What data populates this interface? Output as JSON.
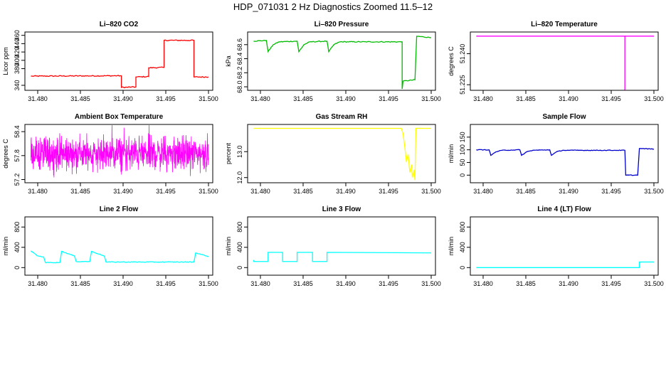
{
  "title": "HDP_071031  2 Hz Diagnostics Zoomed 11.5–12",
  "chart_data": [
    {
      "type": "line",
      "title": "Li–820 CO2",
      "xlabel": "",
      "ylabel": "Licor ppm",
      "xlim": [
        31.4785,
        31.5005
      ],
      "ylim": [
        328,
        468
      ],
      "xticks": [
        31.48,
        31.485,
        31.49,
        31.495,
        31.5
      ],
      "xtick_labels": [
        "31.480",
        "31.485",
        "31.490",
        "31.495",
        "31.500"
      ],
      "yticks": [
        340,
        380,
        400,
        420,
        440,
        460
      ],
      "ytick_labels": [
        "340",
        "380",
        "400",
        "420",
        "440",
        "460"
      ],
      "grid": false,
      "series": [
        {
          "color": "#ff0000",
          "noise": 1.2,
          "x": [
            31.4792,
            31.4898,
            31.4898,
            31.4915,
            31.4915,
            31.493,
            31.493,
            31.4948,
            31.4948,
            31.4983,
            31.4983,
            31.5
          ],
          "y": [
            362,
            363,
            335,
            336,
            360,
            361,
            382,
            383,
            448,
            448,
            360,
            360
          ]
        }
      ]
    },
    {
      "type": "line",
      "title": "Li–820 Pressure",
      "xlabel": "",
      "ylabel": "kPa",
      "xlim": [
        31.4785,
        31.5005
      ],
      "ylim": [
        67.95,
        68.78
      ],
      "xticks": [
        31.48,
        31.485,
        31.49,
        31.495,
        31.5
      ],
      "xtick_labels": [
        "31.480",
        "31.485",
        "31.490",
        "31.495",
        "31.500"
      ],
      "yticks": [
        68.0,
        68.2,
        68.4,
        68.6
      ],
      "ytick_labels": [
        "68.0",
        "68.2",
        "68.4",
        "68.6"
      ],
      "grid": false,
      "series": [
        {
          "color": "#00bb00",
          "noise": 0.006,
          "x": [
            31.4792,
            31.4807,
            31.4809,
            31.4815,
            31.4822,
            31.4843,
            31.4845,
            31.4851,
            31.4858,
            31.4878,
            31.488,
            31.4886,
            31.4893,
            31.4966,
            31.4966,
            31.4967,
            31.4981,
            31.4983,
            31.5
          ],
          "y": [
            68.65,
            68.66,
            68.5,
            68.6,
            68.64,
            68.65,
            68.5,
            68.6,
            68.64,
            68.65,
            68.5,
            68.6,
            68.64,
            68.64,
            67.97,
            68.08,
            68.1,
            68.72,
            68.7
          ]
        }
      ]
    },
    {
      "type": "line",
      "title": "Li–820 Temperature",
      "xlabel": "",
      "ylabel": "degrees C",
      "xlim": [
        31.4785,
        31.5005
      ],
      "ylim": [
        51.2223,
        51.2505
      ],
      "xticks": [
        31.48,
        31.485,
        31.49,
        31.495,
        31.5
      ],
      "xtick_labels": [
        "31.480",
        "31.485",
        "31.490",
        "31.495",
        "31.500"
      ],
      "yticks": [
        51.225,
        51.24
      ],
      "ytick_labels": [
        "51.225",
        "51.240"
      ],
      "grid": false,
      "series": [
        {
          "color": "#ff00ff",
          "noise": 0,
          "x": [
            31.4792,
            31.4966,
            31.4966,
            31.4966,
            31.5
          ],
          "y": [
            51.2485,
            51.2485,
            51.2225,
            51.2485,
            51.2485
          ]
        }
      ]
    },
    {
      "type": "line",
      "title": "Ambient Box Temperature",
      "xlabel": "",
      "ylabel": "degrees C",
      "xlim": [
        31.4785,
        31.5005
      ],
      "ylim": [
        57.12,
        58.58
      ],
      "xticks": [
        31.48,
        31.485,
        31.49,
        31.495,
        31.5
      ],
      "xtick_labels": [
        "31.480",
        "31.485",
        "31.490",
        "31.495",
        "31.500"
      ],
      "yticks": [
        57.2,
        57.8,
        58.4
      ],
      "ytick_labels": [
        "57.2",
        "57.8",
        "58.4"
      ],
      "grid": false,
      "series": [
        {
          "color": "#ff00ff",
          "noise": 0,
          "x": [
            31.4792,
            31.5
          ],
          "y": [
            57.8,
            57.8
          ],
          "band": [
            57.4,
            58.3
          ]
        }
      ]
    },
    {
      "type": "line",
      "title": "Gas Stream RH",
      "xlabel": "",
      "ylabel": "percent",
      "xlim": [
        31.4785,
        31.5005
      ],
      "ylim": [
        11.8,
        14.05
      ],
      "xticks": [
        31.48,
        31.485,
        31.49,
        31.495,
        31.5
      ],
      "xtick_labels": [
        "31.480",
        "31.485",
        "31.490",
        "31.495",
        "31.500"
      ],
      "yticks": [
        12.0,
        13.0
      ],
      "ytick_labels": [
        "12.0",
        "13.0"
      ],
      "grid": false,
      "series": [
        {
          "color": "#ffff00",
          "noise": 0,
          "x": [
            31.4792,
            31.4965,
            31.4967,
            31.4969,
            31.4971,
            31.4973,
            31.4975,
            31.4977,
            31.4978,
            31.498,
            31.4981,
            31.4982,
            31.5
          ],
          "y": [
            13.9,
            13.9,
            13.7,
            13.2,
            12.6,
            12.9,
            12.2,
            12.5,
            12.0,
            12.3,
            11.9,
            13.9,
            13.9
          ]
        }
      ]
    },
    {
      "type": "line",
      "title": "Sample Flow",
      "xlabel": "",
      "ylabel": "ml/min",
      "xlim": [
        31.4785,
        31.5005
      ],
      "ylim": [
        -30,
        200
      ],
      "xticks": [
        31.48,
        31.485,
        31.49,
        31.495,
        31.5
      ],
      "xtick_labels": [
        "31.480",
        "31.485",
        "31.490",
        "31.495",
        "31.500"
      ],
      "yticks": [
        0,
        50,
        100,
        150
      ],
      "ytick_labels": [
        "0",
        "50",
        "100",
        "150"
      ],
      "grid": false,
      "series": [
        {
          "color": "#0000cc",
          "noise": 1.2,
          "x": [
            31.4792,
            31.4807,
            31.4809,
            31.4815,
            31.4822,
            31.4843,
            31.4845,
            31.4851,
            31.4858,
            31.4878,
            31.488,
            31.4886,
            31.4893,
            31.4966,
            31.4967,
            31.4981,
            31.4983,
            31.5
          ],
          "y": [
            100,
            100,
            78,
            92,
            98,
            100,
            78,
            92,
            98,
            100,
            78,
            92,
            98,
            98,
            0,
            0,
            105,
            103
          ]
        }
      ]
    },
    {
      "type": "line",
      "title": "Line 2 Flow",
      "xlabel": "",
      "ylabel": "ml/min",
      "xlim": [
        31.4785,
        31.5005
      ],
      "ylim": [
        -150,
        1000
      ],
      "xticks": [
        31.48,
        31.485,
        31.49,
        31.495,
        31.5
      ],
      "xtick_labels": [
        "31.480",
        "31.485",
        "31.490",
        "31.495",
        "31.500"
      ],
      "yticks": [
        0,
        400,
        800
      ],
      "ytick_labels": [
        "0",
        "400",
        "800"
      ],
      "grid": false,
      "series": [
        {
          "color": "#00ffff",
          "noise": 6,
          "x": [
            31.4792,
            31.48,
            31.4807,
            31.4809,
            31.4826,
            31.4828,
            31.4843,
            31.4845,
            31.4861,
            31.4863,
            31.4878,
            31.488,
            31.4983,
            31.4985,
            31.5
          ],
          "y": [
            330,
            230,
            210,
            100,
            100,
            320,
            230,
            120,
            120,
            320,
            230,
            110,
            110,
            290,
            220
          ]
        }
      ]
    },
    {
      "type": "line",
      "title": "Line 3 Flow",
      "xlabel": "",
      "ylabel": "ml/min",
      "xlim": [
        31.4785,
        31.5005
      ],
      "ylim": [
        -150,
        1000
      ],
      "xticks": [
        31.48,
        31.485,
        31.49,
        31.495,
        31.5
      ],
      "xtick_labels": [
        "31.480",
        "31.485",
        "31.490",
        "31.495",
        "31.500"
      ],
      "yticks": [
        0,
        400,
        800
      ],
      "ytick_labels": [
        "0",
        "400",
        "800"
      ],
      "grid": false,
      "series": [
        {
          "color": "#00ffff",
          "noise": 0,
          "x": [
            31.4792,
            31.4792,
            31.4809,
            31.4809,
            31.4826,
            31.4826,
            31.4843,
            31.4843,
            31.4861,
            31.4861,
            31.4878,
            31.4878,
            31.5
          ],
          "y": [
            150,
            120,
            120,
            300,
            300,
            120,
            120,
            300,
            300,
            120,
            120,
            300,
            290
          ]
        }
      ]
    },
    {
      "type": "line",
      "title": "Line 4 (LT) Flow",
      "xlabel": "",
      "ylabel": "ml/min",
      "xlim": [
        31.4785,
        31.5005
      ],
      "ylim": [
        -150,
        1000
      ],
      "xticks": [
        31.48,
        31.485,
        31.49,
        31.495,
        31.5
      ],
      "xtick_labels": [
        "31.480",
        "31.485",
        "31.490",
        "31.495",
        "31.500"
      ],
      "yticks": [
        0,
        400,
        800
      ],
      "ytick_labels": [
        "0",
        "400",
        "800"
      ],
      "grid": false,
      "series": [
        {
          "color": "#00ffff",
          "noise": 0,
          "x": [
            31.4792,
            31.4983,
            31.4983,
            31.5
          ],
          "y": [
            0,
            0,
            110,
            110
          ]
        }
      ]
    }
  ]
}
